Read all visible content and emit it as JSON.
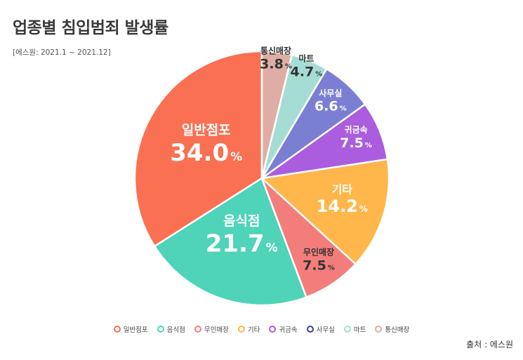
{
  "title": "업종별 침입범죄 발생률",
  "period": "[에스원: 2021.1 ~ 2021.12]",
  "source": "출처 : 에스원",
  "chart_data": {
    "type": "pie",
    "title": "업종별 침입범죄 발생률",
    "unit": "%",
    "slices": [
      {
        "label": "일반점포",
        "value": 34.0,
        "display": "34.0",
        "color": "#f97053",
        "text_color": "#ffffff"
      },
      {
        "label": "음식점",
        "value": 21.7,
        "display": "21.7",
        "color": "#4fd3b9",
        "text_color": "#ffffff"
      },
      {
        "label": "무인매장",
        "value": 7.5,
        "display": "7.5",
        "color": "#f37d7b",
        "text_color": "#333333"
      },
      {
        "label": "기타",
        "value": 14.2,
        "display": "14.2",
        "color": "#ffb64a",
        "text_color": "#ffffff"
      },
      {
        "label": "귀금속",
        "value": 7.5,
        "display": "7.5",
        "color": "#aa5ddf",
        "text_color": "#ffffff"
      },
      {
        "label": "사무실",
        "value": 6.6,
        "display": "6.6",
        "color": "#7b7fd4",
        "text_color": "#ffffff"
      },
      {
        "label": "마트",
        "value": 4.7,
        "display": "4.7",
        "color": "#a5ddd4",
        "text_color": "#333333"
      },
      {
        "label": "통신매장",
        "value": 3.8,
        "display": "3.8",
        "color": "#deaea5",
        "text_color": "#333333"
      }
    ],
    "slice_order_clockwise_from_top": [
      "일반점포",
      "음식점",
      "무인매장",
      "기타",
      "귀금속",
      "사무실",
      "마트",
      "통신매장"
    ],
    "legend_position": "bottom",
    "legend_order": [
      "일반점포",
      "음식점",
      "무인매장",
      "기타",
      "귀금속",
      "사무실",
      "마트",
      "통신매장"
    ],
    "legend_colors": [
      "#f97053",
      "#4fd3b9",
      "#f37d7b",
      "#ffb64a",
      "#aa5ddf",
      "#3d3f9a",
      "#a5ddd4",
      "#deaea5"
    ]
  }
}
